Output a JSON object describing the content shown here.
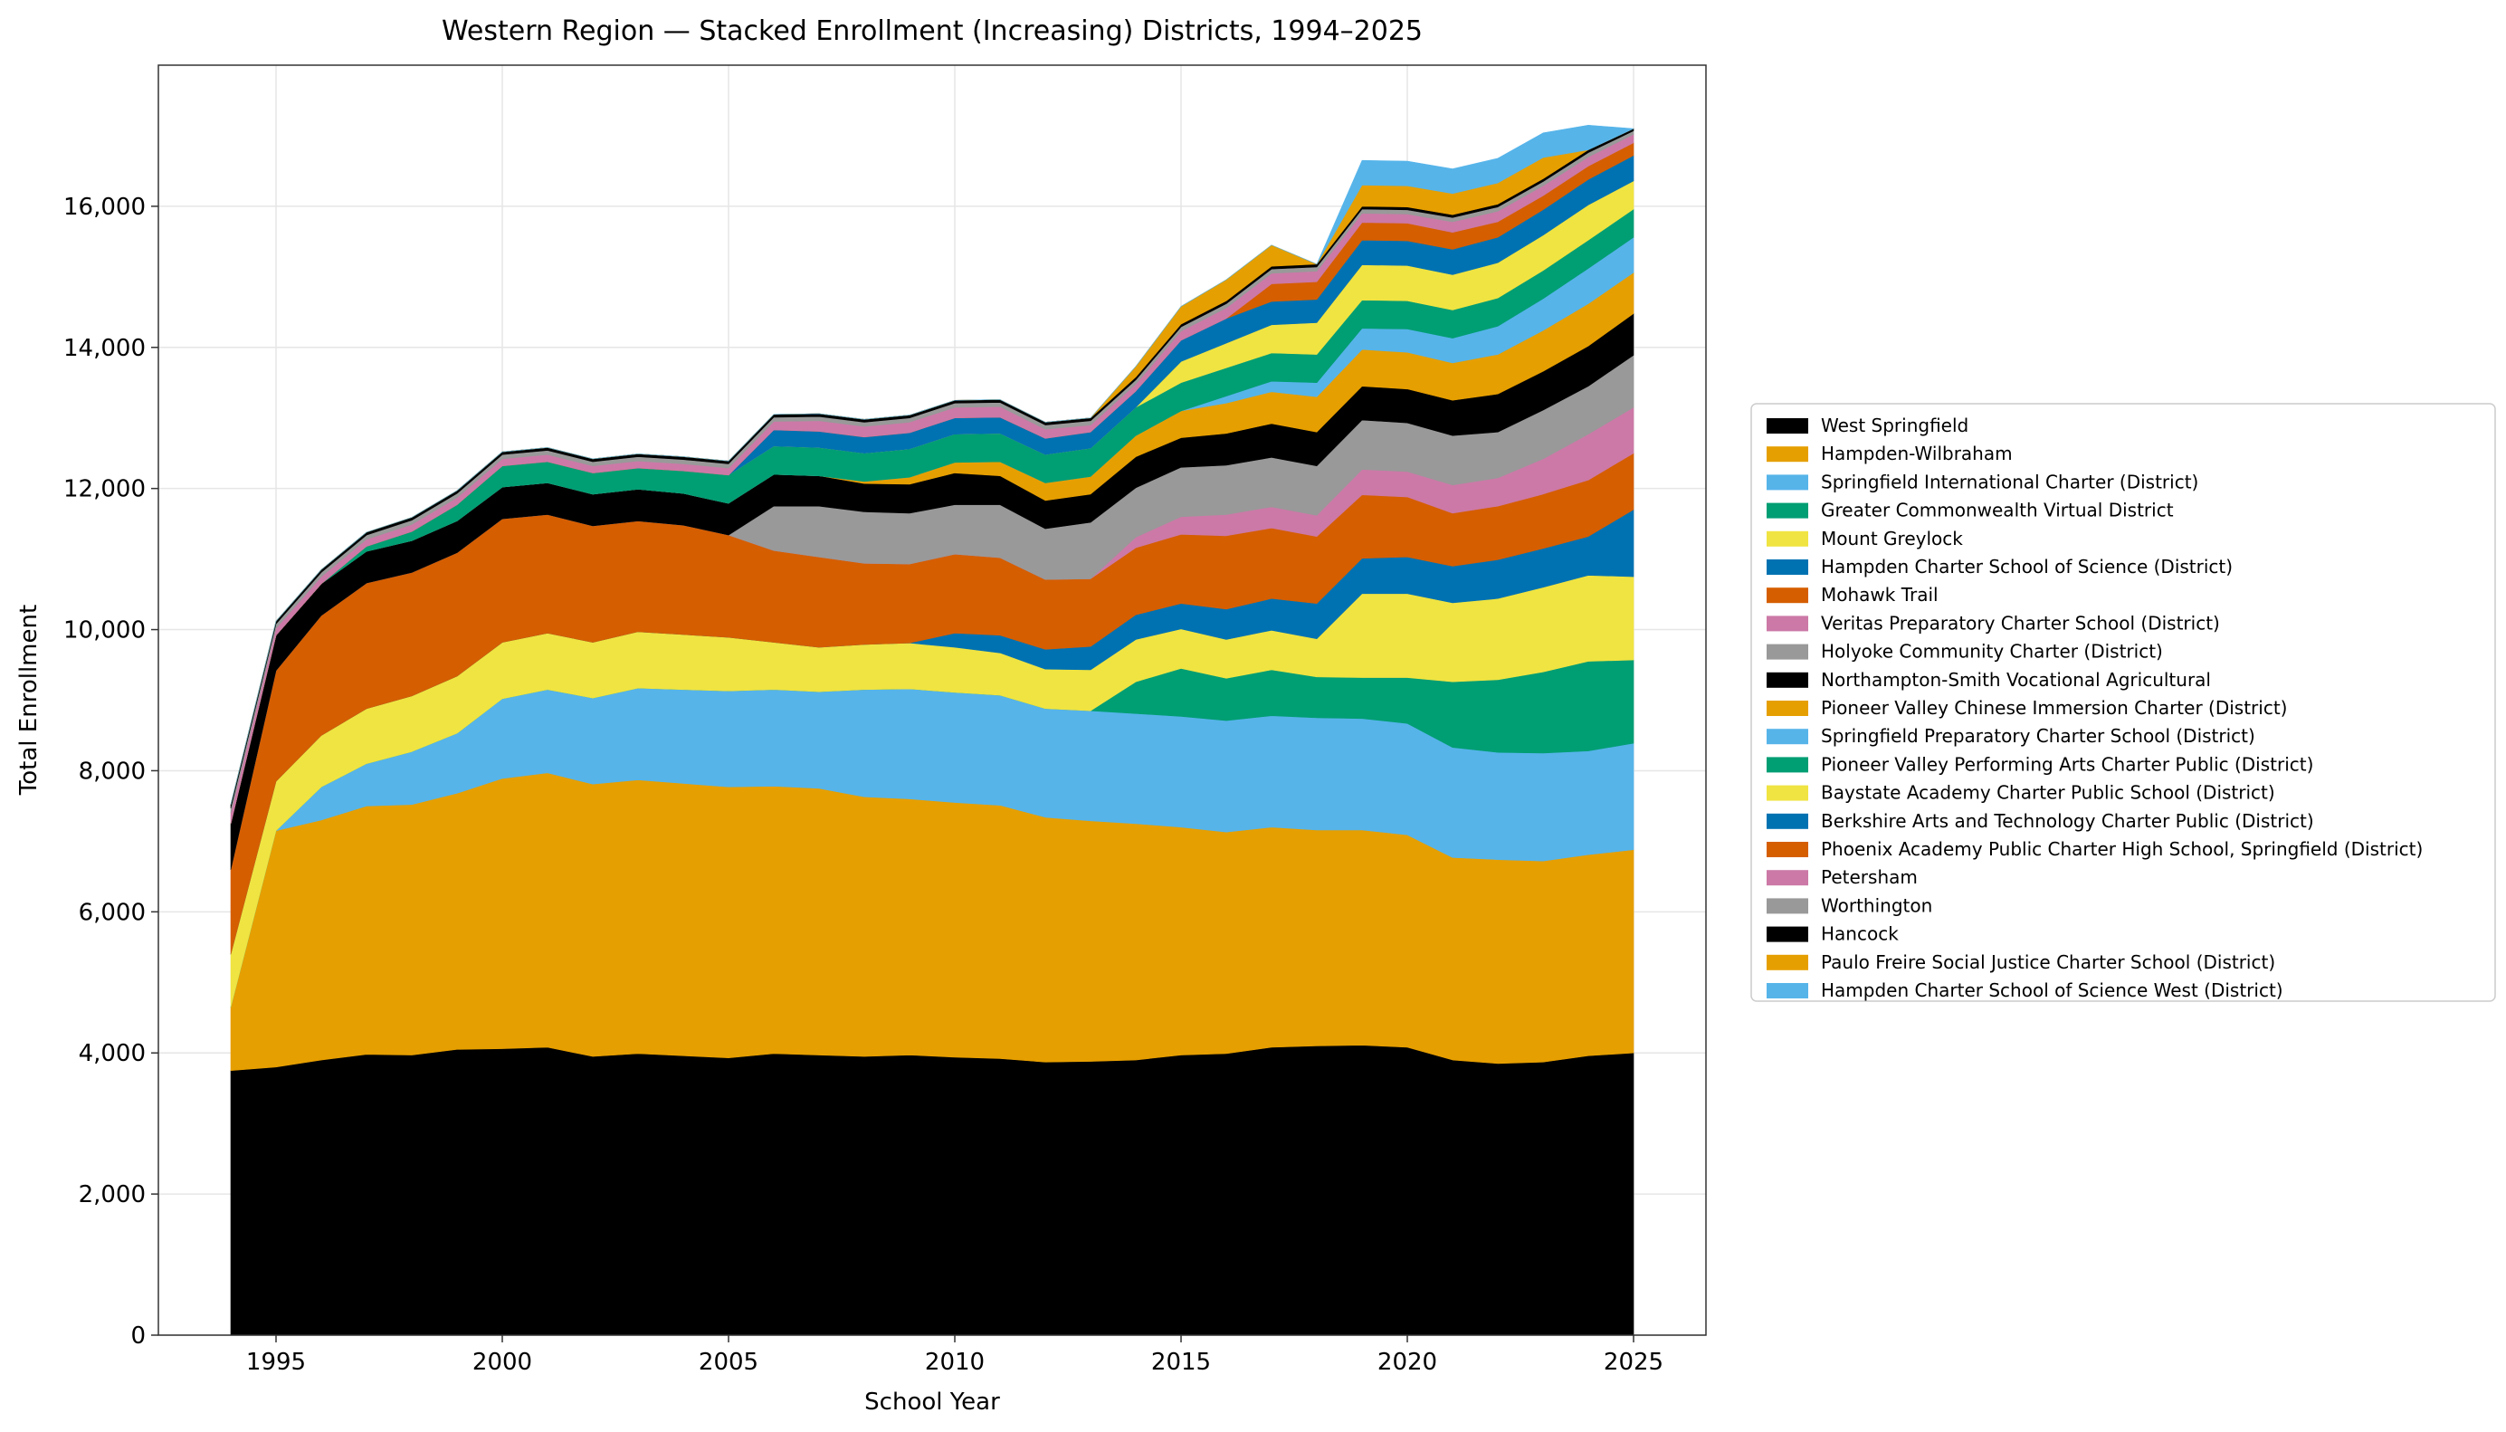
{
  "chart_data": {
    "type": "area",
    "stacked": true,
    "title": "Western Region — Stacked Enrollment (Increasing) Districts, 1994–2025",
    "xlabel": "School Year",
    "ylabel": "Total Enrollment",
    "xlim": [
      1992.4,
      2026.6
    ],
    "ylim": [
      0,
      18000
    ],
    "xticks": [
      1995,
      2000,
      2005,
      2010,
      2015,
      2020,
      2025
    ],
    "yticks": [
      0,
      2000,
      4000,
      6000,
      8000,
      10000,
      12000,
      14000,
      16000
    ],
    "ytick_labels": [
      "0",
      "2,000",
      "4,000",
      "6,000",
      "8,000",
      "10,000",
      "12,000",
      "14,000",
      "16,000"
    ],
    "grid": true,
    "legend_position": "right-outside",
    "x": [
      1994,
      1995,
      1996,
      1997,
      1998,
      1999,
      2000,
      2001,
      2002,
      2003,
      2004,
      2005,
      2006,
      2007,
      2008,
      2009,
      2010,
      2011,
      2012,
      2013,
      2014,
      2015,
      2016,
      2017,
      2018,
      2019,
      2020,
      2021,
      2022,
      2023,
      2024,
      2025
    ],
    "series": [
      {
        "name": "West Springfield",
        "color": "#000000",
        "values": [
          3750,
          3800,
          3900,
          3980,
          3970,
          4050,
          4060,
          4080,
          3950,
          3990,
          3960,
          3930,
          3990,
          3970,
          3950,
          3970,
          3940,
          3920,
          3870,
          3880,
          3900,
          3970,
          3990,
          4080,
          4100,
          4110,
          4080,
          3900,
          3850,
          3870,
          3960,
          4000
        ]
      },
      {
        "name": "Hampden-Wilbraham",
        "color": "#E69F00",
        "values": [
          900,
          3350,
          3400,
          3520,
          3550,
          3630,
          3830,
          3890,
          3860,
          3880,
          3860,
          3840,
          3790,
          3780,
          3680,
          3630,
          3610,
          3590,
          3470,
          3410,
          3350,
          3230,
          3140,
          3120,
          3060,
          3050,
          3010,
          2870,
          2890,
          2850,
          2850,
          2880
        ]
      },
      {
        "name": "Springfield International Charter (District)",
        "color": "#56B4E9",
        "values": [
          0,
          0,
          470,
          600,
          750,
          850,
          1130,
          1180,
          1220,
          1300,
          1330,
          1360,
          1370,
          1370,
          1520,
          1560,
          1560,
          1560,
          1540,
          1560,
          1560,
          1570,
          1580,
          1580,
          1590,
          1580,
          1580,
          1560,
          1520,
          1530,
          1470,
          1510
        ]
      },
      {
        "name": "Greater Commonwealth Virtual District",
        "color": "#009E73",
        "values": [
          0,
          0,
          0,
          0,
          0,
          0,
          0,
          0,
          0,
          0,
          0,
          0,
          0,
          0,
          0,
          0,
          0,
          0,
          0,
          0,
          450,
          680,
          600,
          650,
          580,
          580,
          650,
          930,
          1030,
          1150,
          1270,
          1180
        ]
      },
      {
        "name": "Mount Greylock",
        "color": "#F0E442",
        "values": [
          750,
          700,
          730,
          780,
          790,
          810,
          800,
          800,
          790,
          800,
          780,
          760,
          670,
          630,
          640,
          650,
          640,
          600,
          560,
          580,
          600,
          560,
          550,
          560,
          540,
          1190,
          1190,
          1120,
          1150,
          1200,
          1220,
          1180
        ]
      },
      {
        "name": "Hampden Charter School of Science (District)",
        "color": "#0072B2",
        "values": [
          0,
          0,
          0,
          0,
          0,
          0,
          0,
          0,
          0,
          0,
          0,
          0,
          0,
          0,
          0,
          0,
          200,
          250,
          280,
          330,
          350,
          360,
          430,
          450,
          500,
          500,
          520,
          520,
          550,
          550,
          550,
          950
        ]
      },
      {
        "name": "Mohawk Trail",
        "color": "#D55E00",
        "values": [
          1200,
          1570,
          1700,
          1780,
          1750,
          1750,
          1750,
          1680,
          1650,
          1570,
          1550,
          1450,
          1300,
          1280,
          1150,
          1120,
          1120,
          1100,
          990,
          960,
          950,
          980,
          1040,
          1000,
          950,
          900,
          850,
          750,
          760,
          770,
          800,
          800
        ]
      },
      {
        "name": "Veritas Preparatory Charter School (District)",
        "color": "#CC79A7",
        "values": [
          0,
          0,
          0,
          0,
          0,
          0,
          0,
          0,
          0,
          0,
          0,
          0,
          0,
          0,
          0,
          0,
          0,
          0,
          0,
          0,
          150,
          250,
          300,
          300,
          300,
          360,
          360,
          400,
          400,
          500,
          650,
          650
        ]
      },
      {
        "name": "Holyoke Community Charter (District)",
        "color": "#999999",
        "values": [
          0,
          0,
          0,
          0,
          0,
          0,
          0,
          0,
          0,
          0,
          0,
          0,
          630,
          720,
          730,
          720,
          700,
          750,
          720,
          800,
          700,
          700,
          700,
          700,
          700,
          700,
          690,
          700,
          650,
          690,
          680,
          740
        ]
      },
      {
        "name": "Northampton-Smith Vocational Agricultural",
        "color": "#000000",
        "values": [
          650,
          500,
          450,
          450,
          450,
          450,
          450,
          450,
          450,
          450,
          450,
          450,
          450,
          430,
          400,
          410,
          450,
          410,
          400,
          400,
          440,
          420,
          450,
          480,
          480,
          480,
          480,
          500,
          540,
          550,
          570,
          590
        ]
      },
      {
        "name": "Pioneer Valley Chinese Immersion Charter (District)",
        "color": "#E69F00",
        "values": [
          0,
          0,
          0,
          0,
          0,
          0,
          0,
          0,
          0,
          0,
          0,
          0,
          0,
          0,
          30,
          100,
          150,
          200,
          250,
          250,
          300,
          380,
          430,
          450,
          500,
          520,
          520,
          530,
          560,
          580,
          600,
          580
        ]
      },
      {
        "name": "Springfield Preparatory Charter School (District)",
        "color": "#56B4E9",
        "values": [
          0,
          0,
          0,
          0,
          0,
          0,
          0,
          0,
          0,
          0,
          0,
          0,
          0,
          0,
          0,
          0,
          0,
          0,
          0,
          0,
          0,
          0,
          100,
          150,
          200,
          300,
          330,
          350,
          400,
          450,
          500,
          500
        ]
      },
      {
        "name": "Pioneer Valley Performing Arts Charter Public (District)",
        "color": "#009E73",
        "values": [
          0,
          0,
          0,
          70,
          130,
          230,
          300,
          300,
          300,
          300,
          320,
          400,
          400,
          400,
          400,
          400,
          400,
          400,
          400,
          400,
          400,
          400,
          400,
          400,
          400,
          400,
          400,
          400,
          400,
          400,
          400,
          400
        ]
      },
      {
        "name": "Baystate Academy Charter Public School (District)",
        "color": "#F0E442",
        "values": [
          0,
          0,
          0,
          0,
          0,
          0,
          0,
          0,
          0,
          0,
          0,
          0,
          0,
          0,
          0,
          0,
          0,
          0,
          0,
          0,
          0,
          300,
          350,
          400,
          450,
          500,
          500,
          500,
          500,
          500,
          500,
          400
        ]
      },
      {
        "name": "Berkshire Arts and Technology Charter Public (District)",
        "color": "#0072B2",
        "values": [
          0,
          0,
          0,
          0,
          0,
          0,
          0,
          0,
          0,
          0,
          0,
          0,
          230,
          230,
          230,
          230,
          230,
          230,
          230,
          230,
          230,
          300,
          350,
          330,
          330,
          350,
          350,
          360,
          360,
          360,
          360,
          360
        ]
      },
      {
        "name": "Phoenix Academy Public Charter High School, Springfield (District)",
        "color": "#D55E00",
        "values": [
          0,
          0,
          0,
          0,
          0,
          0,
          0,
          0,
          0,
          0,
          0,
          0,
          0,
          0,
          0,
          0,
          0,
          0,
          0,
          0,
          0,
          0,
          0,
          250,
          250,
          250,
          250,
          240,
          220,
          200,
          190,
          180
        ]
      },
      {
        "name": "Petersham",
        "color": "#CC79A7",
        "values": [
          150,
          100,
          100,
          100,
          100,
          100,
          100,
          100,
          100,
          100,
          100,
          100,
          120,
          150,
          150,
          150,
          150,
          150,
          130,
          100,
          100,
          130,
          150,
          150,
          150,
          130,
          130,
          150,
          150,
          140,
          130,
          120
        ]
      },
      {
        "name": "Worthington",
        "color": "#999999",
        "values": [
          70,
          60,
          60,
          60,
          60,
          60,
          60,
          60,
          60,
          60,
          60,
          60,
          60,
          60,
          60,
          60,
          60,
          60,
          60,
          60,
          60,
          60,
          60,
          60,
          60,
          60,
          60,
          60,
          60,
          60,
          60,
          50
        ]
      },
      {
        "name": "Hancock",
        "color": "#000000",
        "values": [
          50,
          40,
          40,
          40,
          40,
          40,
          40,
          40,
          40,
          40,
          40,
          40,
          40,
          40,
          40,
          40,
          40,
          40,
          40,
          40,
          40,
          40,
          40,
          40,
          40,
          40,
          40,
          40,
          40,
          40,
          40,
          30
        ]
      },
      {
        "name": "Paulo Freire Social Justice Charter School (District)",
        "color": "#E69F00",
        "values": [
          0,
          0,
          0,
          0,
          0,
          0,
          0,
          0,
          0,
          0,
          0,
          0,
          0,
          0,
          0,
          0,
          0,
          0,
          0,
          0,
          150,
          250,
          300,
          300,
          0,
          300,
          300,
          300,
          300,
          300,
          0,
          0
        ]
      },
      {
        "name": "Hampden Charter School of Science West (District)",
        "color": "#56B4E9",
        "values": [
          0,
          0,
          0,
          0,
          0,
          0,
          0,
          0,
          0,
          0,
          0,
          0,
          0,
          0,
          0,
          0,
          0,
          0,
          0,
          0,
          0,
          0,
          0,
          0,
          0,
          350,
          350,
          350,
          350,
          350,
          350,
          0
        ]
      }
    ]
  }
}
